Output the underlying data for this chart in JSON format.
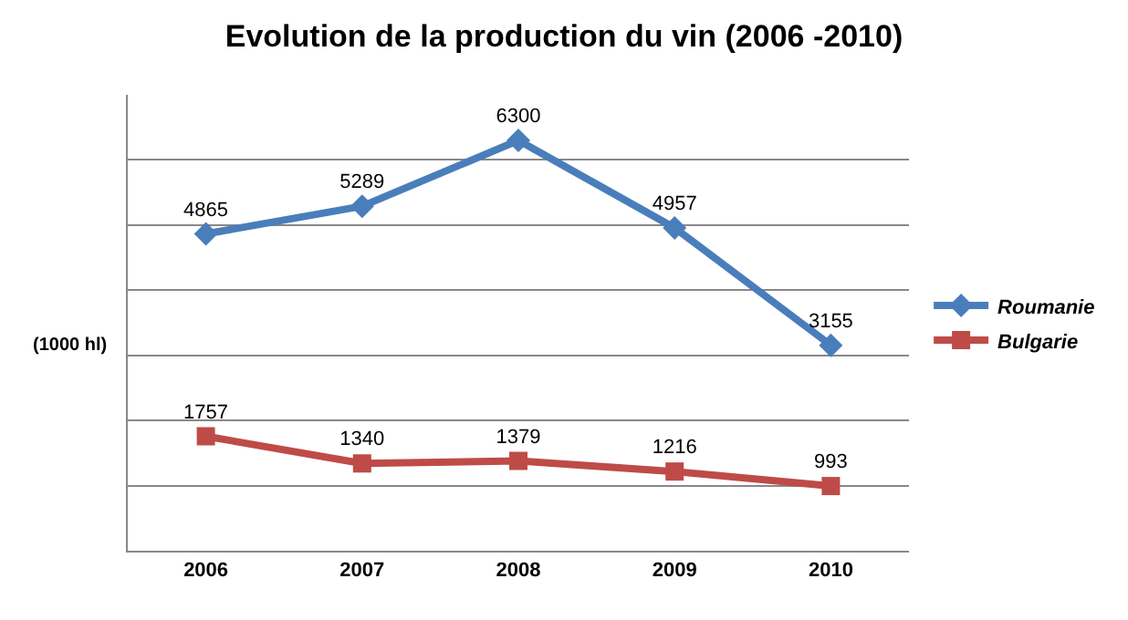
{
  "chart_data": {
    "type": "line",
    "title": "Evolution de la production du vin (2006 -2010)",
    "ylabel": "(1000 hl)",
    "categories": [
      "2006",
      "2007",
      "2008",
      "2009",
      "2010"
    ],
    "series": [
      {
        "name": "Roumanie",
        "color": "#4a7ebb",
        "marker": "diamond",
        "values": [
          4865,
          5289,
          6300,
          4957,
          3155
        ]
      },
      {
        "name": "Bulgarie",
        "color": "#be4b48",
        "marker": "square",
        "values": [
          1757,
          1340,
          1379,
          1216,
          993
        ]
      }
    ],
    "ylim": [
      0,
      7000
    ],
    "yticks": [
      {
        "value": 0,
        "label": null
      },
      {
        "value": 1000,
        "label": null
      },
      {
        "value": 2000,
        "label": null
      },
      {
        "value": 3000,
        "label": null
      },
      {
        "value": 4000,
        "label": null
      },
      {
        "value": 5000,
        "label": null
      },
      {
        "value": 6000,
        "label": null
      }
    ],
    "tick_labels": "x",
    "grid": "y",
    "legend": "right",
    "data_labels": true,
    "line_style": "solid"
  }
}
